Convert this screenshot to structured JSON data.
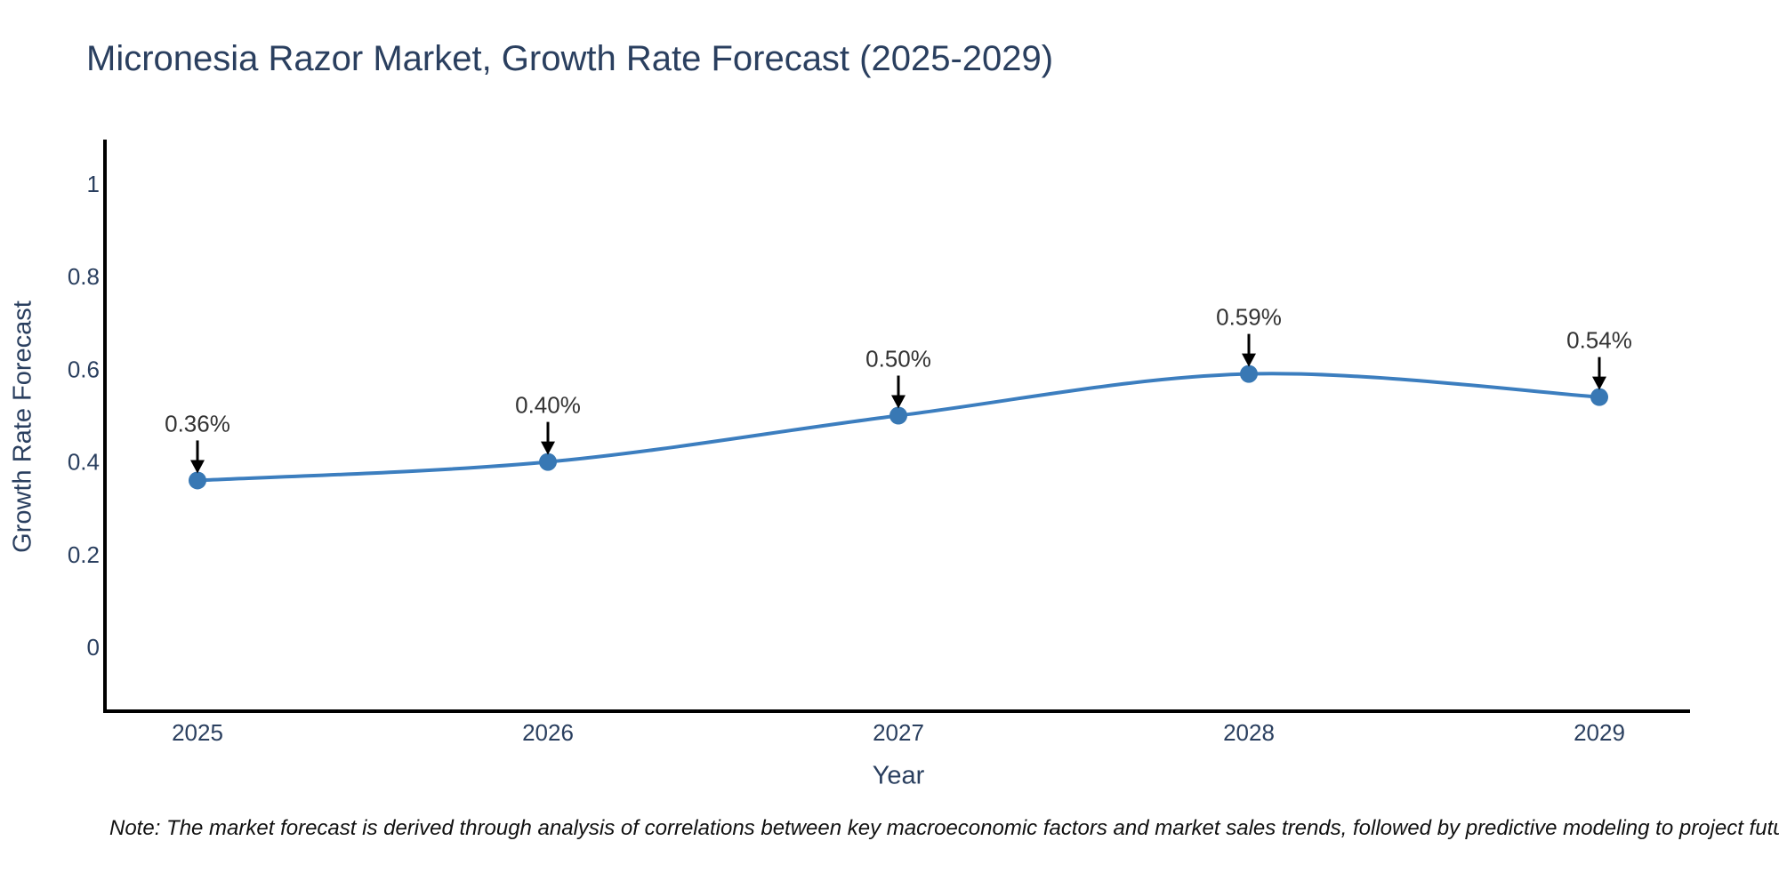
{
  "chart_data": {
    "type": "line",
    "title": "Micronesia Razor Market, Growth Rate Forecast (2025-2029)",
    "xlabel": "Year",
    "ylabel": "Growth Rate Forecast",
    "x": [
      2025,
      2026,
      2027,
      2028,
      2029
    ],
    "series": [
      {
        "name": "Growth Rate Forecast",
        "values": [
          0.36,
          0.4,
          0.5,
          0.59,
          0.54
        ],
        "point_labels": [
          "0.36%",
          "0.40%",
          "0.50%",
          "0.59%",
          "0.54%"
        ]
      }
    ],
    "xtick_labels": [
      "2025",
      "2026",
      "2027",
      "2028",
      "2029"
    ],
    "ytick_values": [
      1,
      0.8,
      0.6,
      0.4,
      0.2,
      0
    ],
    "ytick_labels": [
      "1",
      "0.8",
      "0.6",
      "0.4",
      "0.2",
      "0"
    ],
    "ylim": [
      -0.14,
      1.1
    ],
    "grid": false,
    "legend_position": "none",
    "line_shape": "spline",
    "colors": {
      "line": "#3c7ebf",
      "marker": "#3878b4",
      "axis": "#000000",
      "title_text": "#2a3f5f",
      "tick_text": "#2a3f5f",
      "annotation_text": "#333333",
      "annotation_arrow": "#000000",
      "background": "#ffffff"
    }
  },
  "note": "Note: The market forecast is derived through analysis of correlations between key macroeconomic factors and market sales trends, followed by predictive modeling to project future sales"
}
